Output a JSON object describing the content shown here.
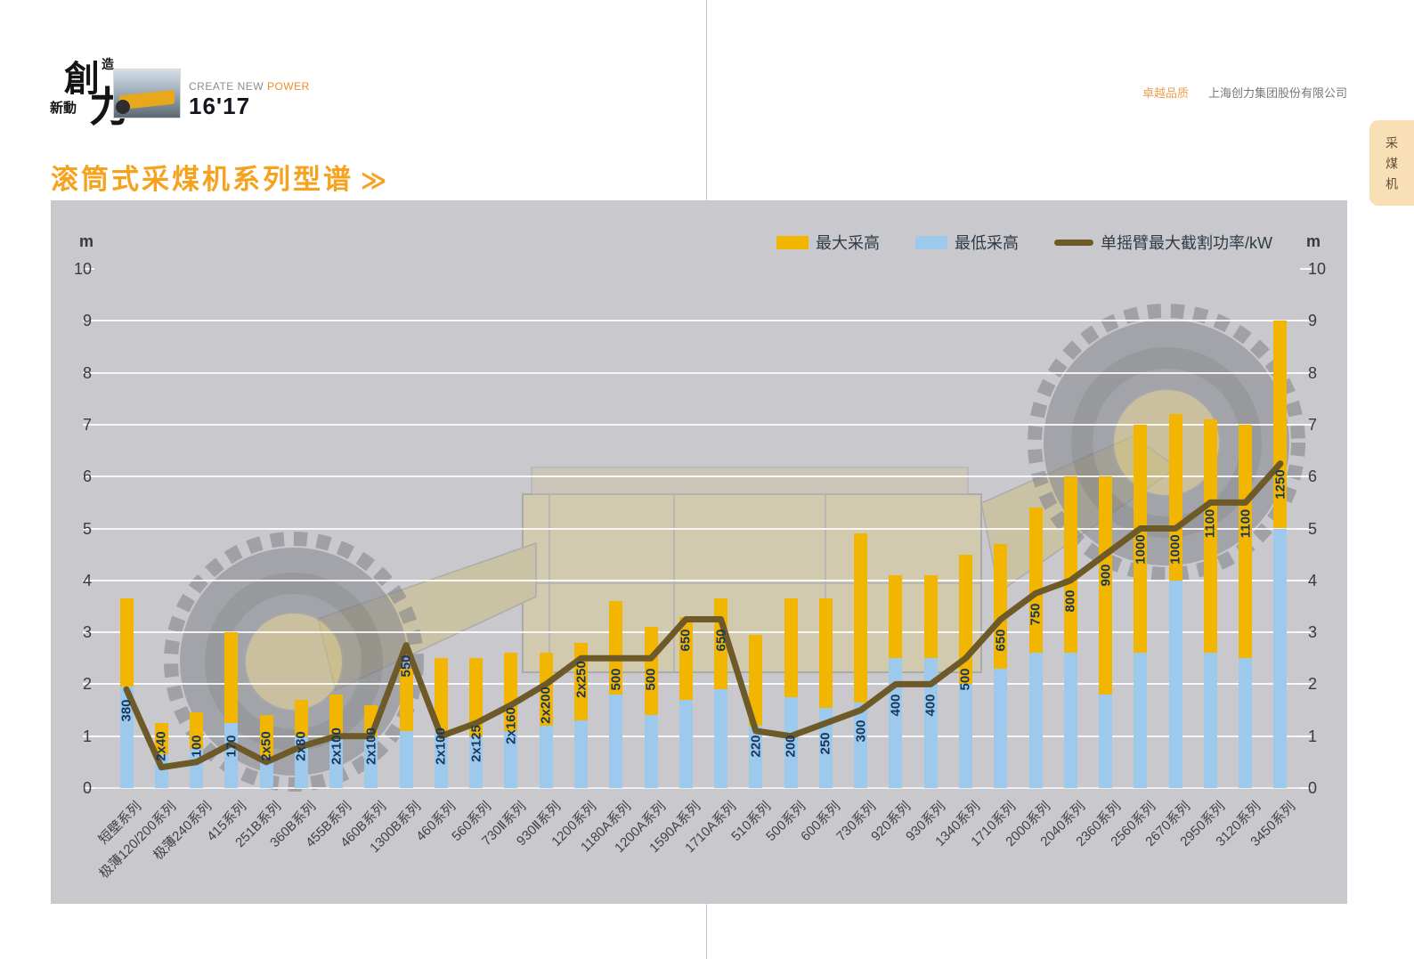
{
  "header": {
    "logo": {
      "char_main_1": "創",
      "char_main_2": "力",
      "char_small_top": "造",
      "char_small_left": "新動",
      "slogan_gray": "CREATE NEW ",
      "slogan_orange": "POWER",
      "year": "16'17"
    },
    "quality_mark": "卓越品质",
    "company_name": "上海创力集团股份有限公司",
    "side_tab": "采煤机",
    "page_title": "滚筒式采煤机系列型谱",
    "title_arrow": "≫"
  },
  "chart_data": {
    "type": "bar",
    "title": "滚筒式采煤机系列型谱",
    "unit_label": "m",
    "ylim": [
      0,
      10
    ],
    "yticks": [
      0,
      1,
      2,
      3,
      4,
      5,
      6,
      7,
      8,
      9,
      10
    ],
    "grid": true,
    "legend_position": "top-right",
    "panel_bg": "#c9c9cd",
    "categories": [
      "短壁系列",
      "极薄120/200系列",
      "极薄240系列",
      "415系列",
      "251B系列",
      "360B系列",
      "455B系列",
      "460B系列",
      "1300B系列",
      "460系列",
      "560系列",
      "730Ⅱ系列",
      "930Ⅱ系列",
      "1200系列",
      "1180A系列",
      "1200A系列",
      "1590A系列",
      "1710A系列",
      "510系列",
      "500系列",
      "600系列",
      "730系列",
      "920系列",
      "930系列",
      "1340系列",
      "1710系列",
      "2000系列",
      "2040系列",
      "2360系列",
      "2560系列",
      "2670系列",
      "2950系列",
      "3120系列",
      "3450系列"
    ],
    "series": [
      {
        "name": "最大采高",
        "type": "bar",
        "color": "#f2b600",
        "values": [
          3.65,
          1.25,
          1.45,
          3.0,
          1.4,
          1.7,
          1.8,
          1.6,
          2.3,
          2.5,
          2.5,
          2.6,
          2.6,
          2.8,
          3.6,
          3.1,
          3.3,
          3.65,
          2.95,
          3.65,
          3.65,
          4.9,
          4.1,
          4.1,
          4.5,
          4.7,
          5.4,
          6.0,
          6.0,
          7.0,
          7.2,
          7.1,
          7.0,
          9.0
        ]
      },
      {
        "name": "最低采高",
        "type": "bar",
        "color": "#9cc9ec",
        "values": [
          1.95,
          0.65,
          0.75,
          1.25,
          0.6,
          1.0,
          1.0,
          1.0,
          1.1,
          1.1,
          1.0,
          1.1,
          1.2,
          1.3,
          1.8,
          1.4,
          1.7,
          1.9,
          1.2,
          1.75,
          1.55,
          1.65,
          2.5,
          2.5,
          2.0,
          2.3,
          2.6,
          2.6,
          1.8,
          2.6,
          4.0,
          2.6,
          2.5,
          5.0
        ]
      },
      {
        "name": "单摇臂最大截割功率/kW",
        "type": "line",
        "color": "#6e5a28",
        "power_labels": [
          "380",
          "2x40",
          "100",
          "170",
          "2x50",
          "2x80",
          "2x100",
          "2x100",
          "550",
          "2x100",
          "2x125",
          "2x160",
          "2x200",
          "2x250",
          "500",
          "500",
          "650",
          "650",
          "220",
          "200",
          "250",
          "300",
          "400",
          "400",
          "500",
          "650",
          "750",
          "800",
          "900",
          "1000",
          "1000",
          "1100",
          "1100",
          "1250"
        ],
        "values_m_scale": [
          1.9,
          0.4,
          0.5,
          0.85,
          0.5,
          0.8,
          1.0,
          1.0,
          2.75,
          1.0,
          1.25,
          1.6,
          2.0,
          2.5,
          2.5,
          2.5,
          3.25,
          3.25,
          1.1,
          1.0,
          1.25,
          1.5,
          2.0,
          2.0,
          2.5,
          3.25,
          3.75,
          4.0,
          4.5,
          5.0,
          5.0,
          5.5,
          5.5,
          6.25
        ]
      }
    ]
  }
}
